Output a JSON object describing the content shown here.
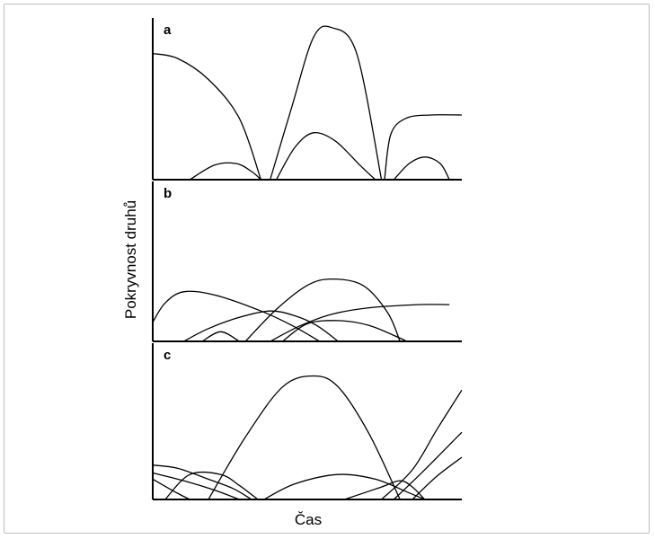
{
  "chart_data": {
    "type": "line",
    "xlabel": "Čas",
    "ylabel": "Pokryvnost druhů",
    "panels": [
      {
        "label": "a",
        "series": [
          {
            "points": [
              [
                0,
                0.78
              ],
              [
                0.08,
                0.75
              ],
              [
                0.18,
                0.62
              ],
              [
                0.28,
                0.38
              ],
              [
                0.35,
                0.0
              ]
            ]
          },
          {
            "points": [
              [
                0.12,
                0.0
              ],
              [
                0.2,
                0.09
              ],
              [
                0.27,
                0.1
              ],
              [
                0.32,
                0.05
              ],
              [
                0.35,
                0.0
              ]
            ]
          },
          {
            "points": [
              [
                0.38,
                0.0
              ],
              [
                0.45,
                0.45
              ],
              [
                0.52,
                0.88
              ],
              [
                0.58,
                0.94
              ],
              [
                0.66,
                0.78
              ],
              [
                0.74,
                0.0
              ]
            ]
          },
          {
            "points": [
              [
                0.4,
                0.0
              ],
              [
                0.46,
                0.2
              ],
              [
                0.52,
                0.29
              ],
              [
                0.59,
                0.24
              ],
              [
                0.67,
                0.09
              ],
              [
                0.72,
                0.0
              ]
            ]
          },
          {
            "points": [
              [
                0.75,
                0.0
              ],
              [
                0.77,
                0.28
              ],
              [
                0.82,
                0.38
              ],
              [
                0.9,
                0.4
              ],
              [
                1.0,
                0.4
              ]
            ]
          },
          {
            "points": [
              [
                0.78,
                0.0
              ],
              [
                0.83,
                0.1
              ],
              [
                0.88,
                0.14
              ],
              [
                0.93,
                0.1
              ],
              [
                0.96,
                0.0
              ]
            ]
          }
        ]
      },
      {
        "label": "b",
        "series": [
          {
            "points": [
              [
                0,
                0.12
              ],
              [
                0.04,
                0.24
              ],
              [
                0.1,
                0.31
              ],
              [
                0.2,
                0.29
              ],
              [
                0.35,
                0.19
              ],
              [
                0.45,
                0.1
              ],
              [
                0.54,
                0.0
              ]
            ]
          },
          {
            "points": [
              [
                0.16,
                0.0
              ],
              [
                0.22,
                0.06
              ],
              [
                0.28,
                0.0
              ]
            ]
          },
          {
            "points": [
              [
                0.1,
                0.0
              ],
              [
                0.18,
                0.08
              ],
              [
                0.28,
                0.15
              ],
              [
                0.38,
                0.19
              ],
              [
                0.46,
                0.16
              ],
              [
                0.53,
                0.1
              ],
              [
                0.6,
                0.0
              ]
            ]
          },
          {
            "points": [
              [
                0.3,
                0.0
              ],
              [
                0.4,
                0.2
              ],
              [
                0.5,
                0.35
              ],
              [
                0.58,
                0.39
              ],
              [
                0.68,
                0.35
              ],
              [
                0.76,
                0.18
              ],
              [
                0.8,
                0.0
              ]
            ]
          },
          {
            "points": [
              [
                0.38,
                0.0
              ],
              [
                0.48,
                0.1
              ],
              [
                0.58,
                0.17
              ],
              [
                0.7,
                0.21
              ],
              [
                0.86,
                0.23
              ],
              [
                0.96,
                0.23
              ]
            ]
          },
          {
            "points": [
              [
                0.42,
                0.0
              ],
              [
                0.5,
                0.11
              ],
              [
                0.6,
                0.13
              ],
              [
                0.7,
                0.1
              ],
              [
                0.8,
                0.02
              ],
              [
                0.82,
                0.0
              ]
            ]
          }
        ]
      },
      {
        "label": "c",
        "series": [
          {
            "points": [
              [
                0,
                0.22
              ],
              [
                0.08,
                0.2
              ],
              [
                0.18,
                0.13
              ],
              [
                0.26,
                0.07
              ],
              [
                0.32,
                0.0
              ]
            ]
          },
          {
            "points": [
              [
                0,
                0.17
              ],
              [
                0.1,
                0.12
              ],
              [
                0.2,
                0.06
              ],
              [
                0.28,
                0.0
              ]
            ]
          },
          {
            "points": [
              [
                0.04,
                0.0
              ],
              [
                0.12,
                0.16
              ],
              [
                0.22,
                0.16
              ],
              [
                0.28,
                0.09
              ],
              [
                0.34,
                0.0
              ]
            ]
          },
          {
            "points": [
              [
                0.0,
                0.13
              ],
              [
                0.08,
                0.04
              ],
              [
                0.12,
                0.0
              ]
            ]
          },
          {
            "points": [
              [
                0.18,
                0.0
              ],
              [
                0.3,
                0.4
              ],
              [
                0.42,
                0.72
              ],
              [
                0.52,
                0.79
              ],
              [
                0.6,
                0.72
              ],
              [
                0.7,
                0.42
              ],
              [
                0.8,
                0.0
              ]
            ]
          },
          {
            "points": [
              [
                0.36,
                0.0
              ],
              [
                0.46,
                0.1
              ],
              [
                0.6,
                0.16
              ],
              [
                0.72,
                0.13
              ],
              [
                0.82,
                0.05
              ],
              [
                0.88,
                0.0
              ]
            ]
          },
          {
            "points": [
              [
                0.74,
                0.0
              ],
              [
                0.84,
                0.19
              ],
              [
                0.92,
                0.45
              ],
              [
                1.0,
                0.7
              ]
            ]
          },
          {
            "points": [
              [
                0.78,
                0.0
              ],
              [
                0.88,
                0.19
              ],
              [
                1.0,
                0.43
              ]
            ]
          },
          {
            "points": [
              [
                0.84,
                0.0
              ],
              [
                0.92,
                0.15
              ],
              [
                1.0,
                0.27
              ]
            ]
          },
          {
            "points": [
              [
                0.62,
                0.0
              ],
              [
                0.74,
                0.08
              ],
              [
                0.8,
                0.12
              ],
              [
                0.84,
                0.08
              ],
              [
                0.88,
                0.0
              ]
            ]
          }
        ]
      }
    ]
  }
}
